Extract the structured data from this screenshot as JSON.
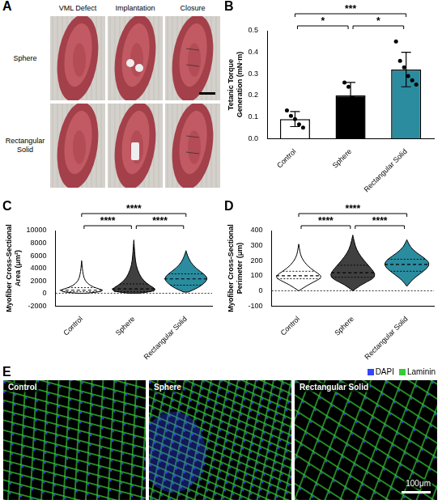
{
  "panels": {
    "A": {
      "letter": "A",
      "columns": [
        "VML Defect",
        "Implantation",
        "Closure"
      ],
      "rows": [
        "Sphere",
        "Rectangular Solid"
      ]
    },
    "E": {
      "letter": "E",
      "images": [
        "Control",
        "Sphere",
        "Rectangular Solid"
      ],
      "channels": [
        {
          "name": "DAPI",
          "color": "#3344ff"
        },
        {
          "name": "Laminin",
          "color": "#33cc33"
        }
      ],
      "scale_bar": "100μm"
    }
  },
  "chart_data": [
    {
      "panel": "B",
      "type": "bar",
      "y_label": "Tetanic Torque Generation (mN·m)",
      "categories": [
        "Control",
        "Sphere",
        "Rectangular Solid"
      ],
      "values": [
        0.09,
        0.2,
        0.32
      ],
      "errors": [
        0.035,
        0.06,
        0.08
      ],
      "points": [
        [
          0.13,
          0.105,
          0.09,
          0.065,
          0.05
        ],
        [
          0.26,
          0.24,
          0.19,
          0.13
        ],
        [
          0.45,
          0.36,
          0.33,
          0.29,
          0.27,
          0.25
        ]
      ],
      "colors": [
        "#ffffff",
        "#000000",
        "#2a8c9e"
      ],
      "ylim": [
        0,
        0.5
      ],
      "yticks": [
        {
          "value": 0,
          "label": "0.0"
        },
        0.1,
        0.2,
        0.3,
        0.4,
        0.5
      ],
      "grid": false,
      "significance": [
        {
          "pair": [
            "Control",
            "Sphere"
          ],
          "label": "*"
        },
        {
          "pair": [
            "Sphere",
            "Rectangular Solid"
          ],
          "label": "*"
        },
        {
          "pair": [
            "Control",
            "Rectangular Solid"
          ],
          "label": "***"
        }
      ]
    },
    {
      "panel": "C",
      "type": "violin",
      "y_label": "Myofiber Cross-Sectional Area (μm²)",
      "categories": [
        "Control",
        "Sphere",
        "Rectangular Solid"
      ],
      "colors": [
        "#ffffff",
        "#404040",
        "#2a8c9e"
      ],
      "violins": [
        {
          "y": [
            0,
            200,
            500,
            800,
            1200,
            2000,
            3000,
            4000,
            5200
          ],
          "density": [
            0.1,
            0.8,
            1,
            0.7,
            0.4,
            0.15,
            0.07,
            0.03,
            0
          ],
          "median": 500,
          "q1": 250,
          "q3": 900
        },
        {
          "y": [
            0,
            300,
            700,
            1200,
            2000,
            3000,
            4500,
            6000,
            7500,
            8500
          ],
          "density": [
            0.2,
            0.9,
            1,
            0.75,
            0.45,
            0.25,
            0.1,
            0.05,
            0.02,
            0
          ],
          "median": 700,
          "q1": 300,
          "q3": 1500
        },
        {
          "y": [
            200,
            800,
            1500,
            2300,
            3000,
            4000,
            5000,
            6000,
            6800
          ],
          "density": [
            0.1,
            0.5,
            0.8,
            1,
            0.85,
            0.45,
            0.2,
            0.07,
            0
          ],
          "median": 2300,
          "q1": 1300,
          "q3": 3100
        }
      ],
      "ylim": [
        -2000,
        10000
      ],
      "yticks": [
        -2000,
        0,
        2000,
        4000,
        6000,
        8000,
        10000
      ],
      "grid": false,
      "significance": [
        {
          "pair": [
            "Control",
            "Sphere"
          ],
          "label": "****"
        },
        {
          "pair": [
            "Sphere",
            "Rectangular Solid"
          ],
          "label": "****"
        },
        {
          "pair": [
            "Control",
            "Rectangular Solid"
          ],
          "label": "****"
        }
      ]
    },
    {
      "panel": "D",
      "type": "violin",
      "y_label": "Myofiber Cross-Sectional Perimeter (μm)",
      "categories": [
        "Control",
        "Sphere",
        "Rectangular Solid"
      ],
      "colors": [
        "#ffffff",
        "#404040",
        "#2a8c9e"
      ],
      "violins": [
        {
          "y": [
            0,
            40,
            80,
            100,
            130,
            170,
            220,
            260,
            310
          ],
          "density": [
            0,
            0.4,
            0.95,
            1,
            0.7,
            0.35,
            0.12,
            0.05,
            0
          ],
          "median": 100,
          "q1": 80,
          "q3": 130
        },
        {
          "y": [
            0,
            40,
            80,
            110,
            150,
            200,
            250,
            300,
            370
          ],
          "density": [
            0,
            0.35,
            0.9,
            1,
            0.8,
            0.5,
            0.25,
            0.1,
            0
          ],
          "median": 120,
          "q1": 90,
          "q3": 170
        },
        {
          "y": [
            30,
            70,
            110,
            150,
            180,
            210,
            250,
            290,
            340
          ],
          "density": [
            0,
            0.2,
            0.55,
            0.9,
            1,
            0.85,
            0.45,
            0.15,
            0
          ],
          "median": 175,
          "q1": 130,
          "q3": 210
        }
      ],
      "ylim": [
        -100,
        400
      ],
      "yticks": [
        -100,
        0,
        100,
        200,
        300,
        400
      ],
      "grid": false,
      "significance": [
        {
          "pair": [
            "Control",
            "Sphere"
          ],
          "label": "****"
        },
        {
          "pair": [
            "Sphere",
            "Rectangular Solid"
          ],
          "label": "****"
        },
        {
          "pair": [
            "Control",
            "Rectangular Solid"
          ],
          "label": "****"
        }
      ]
    }
  ]
}
